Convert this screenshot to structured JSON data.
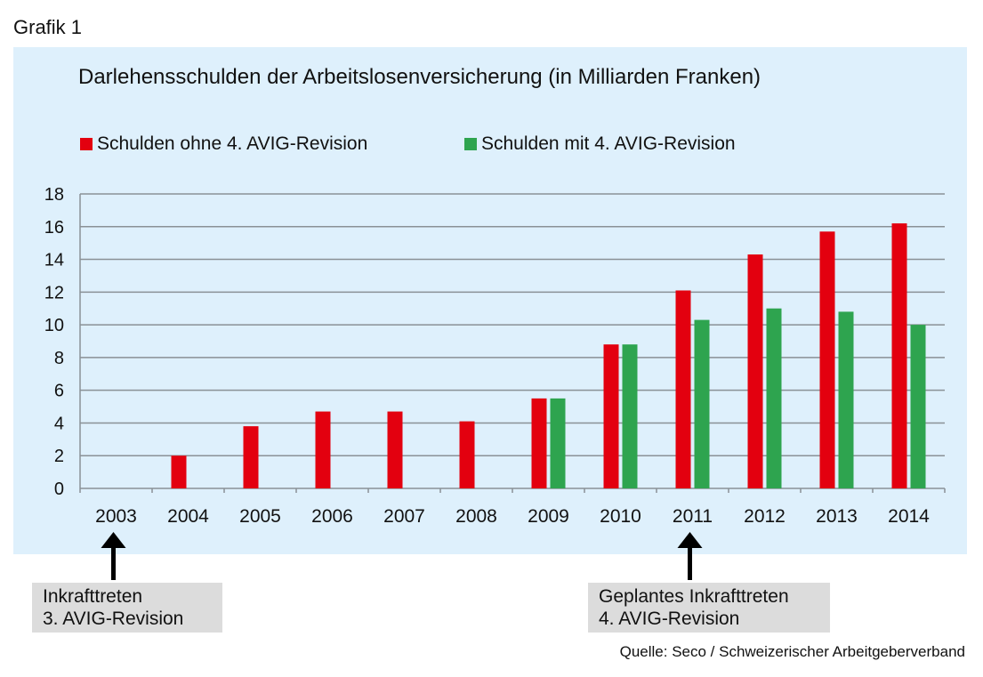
{
  "figure_label": "Grafik 1",
  "source": "Quelle: Seco / Schweizerischer Arbeitgeberverband",
  "annotations": [
    {
      "year": "2003",
      "line1": "Inkrafttreten",
      "line2": "3. AVIG-Revision"
    },
    {
      "year": "2011",
      "line1": "Geplantes Inkrafttreten",
      "line2": "4. AVIG-Revision"
    }
  ],
  "chart_data": {
    "type": "bar",
    "title": "Darlehensschulden der Arbeitslosenversicherung (in Milliarden Franken)",
    "categories": [
      "2003",
      "2004",
      "2005",
      "2006",
      "2007",
      "2008",
      "2009",
      "2010",
      "2011",
      "2012",
      "2013",
      "2014"
    ],
    "series": [
      {
        "name": "Schulden ohne 4. AVIG-Revision",
        "color": "#e3000f",
        "values": [
          0,
          2.0,
          3.8,
          4.7,
          4.7,
          4.1,
          5.5,
          8.8,
          12.1,
          14.3,
          15.7,
          16.2
        ]
      },
      {
        "name": "Schulden mit 4. AVIG-Revision",
        "color": "#2ea44f",
        "values": [
          null,
          null,
          null,
          null,
          null,
          null,
          5.5,
          8.8,
          10.3,
          11.0,
          10.8,
          10.0
        ]
      }
    ],
    "ylim": [
      0,
      18
    ],
    "yticks": [
      0,
      2,
      4,
      6,
      8,
      10,
      12,
      14,
      16,
      18
    ],
    "grid": true,
    "legend": "top"
  }
}
